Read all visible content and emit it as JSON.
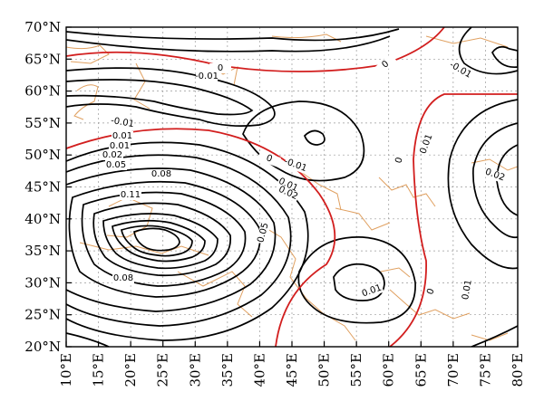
{
  "map": {
    "lon_labels": [
      "10°E",
      "15°E",
      "20°E",
      "25°E",
      "30°E",
      "35°E",
      "40°E",
      "45°E",
      "50°E",
      "55°E",
      "60°E",
      "65°E",
      "70°E",
      "75°E",
      "80°E"
    ],
    "lat_labels": [
      "70°N",
      "65°N",
      "60°N",
      "55°N",
      "50°N",
      "45°N",
      "40°N",
      "35°N",
      "30°N",
      "25°N",
      "20°N"
    ],
    "contour_labels": [
      "0",
      "-0.01",
      "0",
      "-0.01",
      "-0.01",
      "0.01",
      "0.01",
      "0.02",
      "0.05",
      "0.08",
      "0.11",
      "0.08",
      "0",
      "-0.01",
      "0.01",
      "0.02",
      "0.05",
      "0",
      "0.01",
      "0.01",
      "0.02",
      "0.01",
      "0",
      "0.01"
    ],
    "colors": {
      "zero_line": "#d21e1e",
      "contour": "#000000",
      "coastline": "#e0a060",
      "grid": "#9a9a9a"
    }
  }
}
